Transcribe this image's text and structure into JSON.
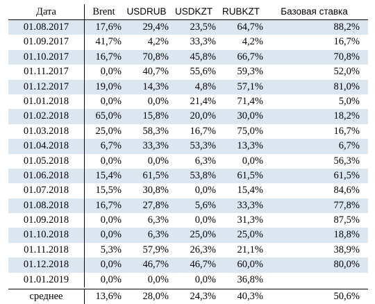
{
  "table": {
    "headers": [
      "Дата",
      "Brent",
      "USDRUB",
      "USDKZT",
      "RUBKZT",
      "Базовая ставка"
    ],
    "rows": [
      [
        "01.08.2017",
        "17,6%",
        "29,4%",
        "23,5%",
        "64,7%",
        "88,2%"
      ],
      [
        "01.09.2017",
        "41,7%",
        "4,2%",
        "33,3%",
        "4,2%",
        "16,7%"
      ],
      [
        "01.10.2017",
        "16,7%",
        "70,8%",
        "45,8%",
        "66,7%",
        "70,8%"
      ],
      [
        "01.11.2017",
        "0,0%",
        "40,7%",
        "55,6%",
        "59,3%",
        "52,0%"
      ],
      [
        "01.12.2017",
        "19,0%",
        "14,3%",
        "4,8%",
        "57,1%",
        "81,0%"
      ],
      [
        "01.01.2018",
        "0,0%",
        "0,0%",
        "21,4%",
        "71,4%",
        "5,0%"
      ],
      [
        "01.02.2018",
        "65,0%",
        "15,8%",
        "20,0%",
        "30,0%",
        "18,2%"
      ],
      [
        "01.03.2018",
        "25,0%",
        "58,3%",
        "16,7%",
        "75,0%",
        "16,7%"
      ],
      [
        "01.04.2018",
        "6,7%",
        "33,3%",
        "53,3%",
        "13,3%",
        "6,7%"
      ],
      [
        "01.05.2018",
        "0,0%",
        "0,0%",
        "6,3%",
        "0,0%",
        "56,3%"
      ],
      [
        "01.06.2018",
        "15,4%",
        "61,5%",
        "53,8%",
        "61,5%",
        "61,5%"
      ],
      [
        "01.07.2018",
        "15,5%",
        "30,8%",
        "0,0%",
        "15,4%",
        "84,6%"
      ],
      [
        "01.08.2018",
        "16,7%",
        "27,8%",
        "5,6%",
        "33,3%",
        "77,8%"
      ],
      [
        "01.09.2018",
        "0,0%",
        "6,3%",
        "0,0%",
        "31,3%",
        "87,5%"
      ],
      [
        "01.10.2018",
        "0,0%",
        "6,3%",
        "25,0%",
        "25,0%",
        "18,8%"
      ],
      [
        "01.11.2018",
        "5,3%",
        "57,9%",
        "26,3%",
        "21,1%",
        "38,9%"
      ],
      [
        "01.12.2018",
        "0,0%",
        "46,7%",
        "46,7%",
        "60,0%",
        "80,0%"
      ],
      [
        "01.01.2019",
        "0,0%",
        "0,0%",
        "0,0%",
        "36,8%",
        ""
      ]
    ],
    "summary": [
      "среднее",
      "13,6%",
      "28,0%",
      "24,3%",
      "40,3%",
      "50,6%"
    ]
  },
  "colors": {
    "stripe": "#dce6f1",
    "rule": "#000000"
  }
}
